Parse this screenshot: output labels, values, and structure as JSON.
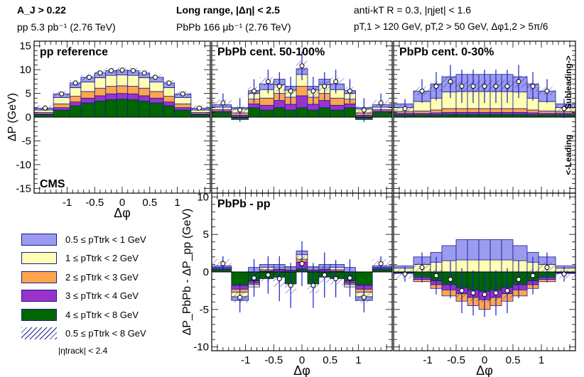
{
  "header": {
    "aj": "A_J > 0.22",
    "pp_lumi": "pp 5.3 pb⁻¹ (2.76 TeV)",
    "range": "Long range, |Δη| < 2.5",
    "pbpb_lumi": "PbPb 166 μb⁻¹ (2.76 TeV)",
    "jet_algo": "anti-kT R = 0.3, |ηjet| < 1.6",
    "pt_cuts": "pT,1 > 120 GeV, pT,2 > 50 GeV, Δφ1,2 > 5π/6"
  },
  "colors": {
    "b1": "#9b9bef",
    "b2": "#ffffb3",
    "b3": "#ffa64d",
    "b4": "#9933cc",
    "b5": "#006600",
    "edge": "#1a1a8c",
    "err": "#1a1acc"
  },
  "legend": {
    "items": [
      {
        "label": "0.5 ≤ pTtrk < 1 GeV",
        "color": "#9b9bef"
      },
      {
        "label": "1 ≤ pTtrk < 2 GeV",
        "color": "#ffffb3"
      },
      {
        "label": "2 ≤ pTtrk < 3 GeV",
        "color": "#ffa64d"
      },
      {
        "label": "3 ≤ pTtrk < 4 GeV",
        "color": "#9933cc"
      },
      {
        "label": "4 ≤ pTtrk < 8 GeV",
        "color": "#006600"
      },
      {
        "label": "0.5 ≤ pTtrk < 8 GeV",
        "color": "hatched"
      }
    ],
    "eta_cut": "|ηtrack| < 2.4"
  },
  "chart_data": [
    {
      "type": "bar",
      "title": "pp reference",
      "tag": "CMS",
      "xlabel": "Δφ",
      "ylabel": "ΔP  (GeV)",
      "ylim": [
        -16,
        16
      ],
      "xlim": [
        -1.6,
        1.6
      ],
      "yticks": [
        -15,
        -10,
        -5,
        0,
        5,
        10,
        15
      ],
      "xticks": [
        -1,
        -0.5,
        0,
        0.5,
        1
      ],
      "x": [
        -1.4,
        -1.1,
        -0.85,
        -0.6,
        -0.4,
        -0.2,
        0.0,
        0.2,
        0.4,
        0.6,
        0.85,
        1.1,
        1.4
      ],
      "series": [
        {
          "name": "4 ≤ pT < 8",
          "values": [
            0.5,
            1.5,
            2.4,
            3.0,
            3.4,
            3.7,
            3.8,
            3.7,
            3.4,
            3.0,
            2.4,
            1.5,
            0.5
          ]
        },
        {
          "name": "3 ≤ pT < 4",
          "values": [
            0.2,
            0.5,
            0.8,
            1.0,
            1.1,
            1.2,
            1.2,
            1.2,
            1.1,
            1.0,
            0.8,
            0.5,
            0.2
          ]
        },
        {
          "name": "2 ≤ pT < 3",
          "values": [
            0.3,
            0.8,
            1.2,
            1.4,
            1.6,
            1.6,
            1.6,
            1.6,
            1.6,
            1.4,
            1.2,
            0.8,
            0.3
          ]
        },
        {
          "name": "1 ≤ pT < 2",
          "values": [
            0.5,
            1.3,
            1.8,
            2.0,
            2.2,
            2.3,
            2.3,
            2.3,
            2.2,
            2.0,
            1.8,
            1.3,
            0.5
          ]
        },
        {
          "name": "0.5 ≤ pT < 1",
          "values": [
            0.4,
            0.8,
            1.0,
            1.0,
            1.0,
            1.0,
            1.0,
            1.0,
            1.0,
            1.0,
            1.0,
            0.8,
            0.4
          ]
        }
      ],
      "points": [
        1.9,
        4.9,
        7.2,
        8.4,
        9.3,
        9.8,
        9.9,
        9.8,
        9.3,
        8.4,
        7.2,
        4.9,
        1.9
      ],
      "errors": [
        0.3,
        0.3,
        0.3,
        0.3,
        0.3,
        0.3,
        0.3,
        0.3,
        0.3,
        0.3,
        0.3,
        0.3,
        0.3
      ]
    },
    {
      "type": "bar",
      "title": "PbPb cent. 50-100%",
      "ylim": [
        -16,
        16
      ],
      "xlim": [
        -1.6,
        1.6
      ],
      "x": [
        -1.4,
        -1.1,
        -0.85,
        -0.6,
        -0.4,
        -0.2,
        0.0,
        0.2,
        0.4,
        0.6,
        0.85,
        1.1,
        1.4
      ],
      "series": [
        {
          "name": "4 ≤ pT < 8",
          "values": [
            1.0,
            -0.5,
            2.0,
            1.5,
            2.0,
            1.5,
            2.0,
            1.5,
            2.0,
            1.5,
            2.0,
            -0.5,
            1.0
          ]
        },
        {
          "name": "3 ≤ pT < 4",
          "values": [
            0.3,
            0.4,
            0.8,
            1.0,
            1.5,
            1.2,
            2.5,
            1.2,
            1.5,
            1.0,
            0.8,
            0.4,
            0.3
          ]
        },
        {
          "name": "2 ≤ pT < 3",
          "values": [
            0.3,
            0.5,
            1.0,
            1.5,
            1.5,
            1.5,
            2.0,
            1.5,
            1.5,
            1.5,
            1.0,
            0.5,
            0.3
          ]
        },
        {
          "name": "1 ≤ pT < 2",
          "values": [
            0.5,
            0.8,
            1.2,
            1.8,
            1.8,
            1.5,
            2.5,
            1.5,
            1.8,
            1.8,
            1.2,
            0.8,
            0.5
          ]
        },
        {
          "name": "0.5 ≤ pT < 1",
          "values": [
            0.5,
            0.3,
            0.6,
            1.2,
            1.2,
            0.8,
            1.2,
            0.8,
            1.2,
            1.2,
            0.6,
            0.3,
            0.5
          ]
        }
      ],
      "points": [
        3.0,
        1.5,
        5.5,
        7.5,
        6.5,
        5.5,
        10.8,
        5.5,
        6.5,
        7.5,
        5.5,
        1.5,
        3.0
      ],
      "errors": [
        2.0,
        2.5,
        2.5,
        2.5,
        3.0,
        3.0,
        3.0,
        3.0,
        3.0,
        2.5,
        2.5,
        2.5,
        2.0
      ]
    },
    {
      "type": "bar",
      "title": "PbPb cent. 0-30%",
      "side_top": "Subleading->",
      "side_bottom": "<-Leading",
      "ylim": [
        -16,
        16
      ],
      "xlim": [
        -1.6,
        1.6
      ],
      "x": [
        -1.4,
        -1.1,
        -0.85,
        -0.6,
        -0.4,
        -0.2,
        0.0,
        0.2,
        0.4,
        0.6,
        0.85,
        1.1,
        1.4
      ],
      "series": [
        {
          "name": "4 ≤ pT < 8",
          "values": [
            0.5,
            0.5,
            0.5,
            0.6,
            0.6,
            0.6,
            0.6,
            0.6,
            0.6,
            0.6,
            0.5,
            0.5,
            0.5
          ]
        },
        {
          "name": "3 ≤ pT < 4",
          "values": [
            0.3,
            0.3,
            0.4,
            0.4,
            0.4,
            0.4,
            0.4,
            0.4,
            0.4,
            0.4,
            0.4,
            0.3,
            0.3
          ]
        },
        {
          "name": "2 ≤ pT < 3",
          "values": [
            0.4,
            0.5,
            0.6,
            0.8,
            0.8,
            0.8,
            0.8,
            0.8,
            0.8,
            0.8,
            0.6,
            0.5,
            0.4
          ]
        },
        {
          "name": "1 ≤ pT < 2",
          "values": [
            0.8,
            2.0,
            2.5,
            3.5,
            3.6,
            3.6,
            3.6,
            3.6,
            3.6,
            3.5,
            2.5,
            2.0,
            0.8
          ]
        },
        {
          "name": "0.5 ≤ pT < 1",
          "values": [
            0.8,
            2.2,
            3.0,
            3.2,
            3.6,
            3.6,
            3.6,
            3.6,
            3.6,
            3.2,
            3.0,
            2.2,
            0.8
          ]
        }
      ],
      "points": [
        1.8,
        5.5,
        6.5,
        7.5,
        6.5,
        6.5,
        6.5,
        6.5,
        6.5,
        7.5,
        6.5,
        5.5,
        1.8
      ],
      "errors": [
        2.0,
        2.5,
        3.0,
        3.5,
        3.5,
        3.5,
        3.5,
        3.5,
        3.5,
        3.5,
        3.0,
        2.5,
        2.0
      ]
    },
    {
      "type": "bar",
      "title": "PbPb - pp",
      "xlabel": "Δφ",
      "ylabel": "ΔP_PbPb - ΔP_pp  (GeV)",
      "ylim": [
        -10.5,
        10.5
      ],
      "xlim": [
        -1.6,
        1.6
      ],
      "yticks": [
        -10,
        -5,
        0,
        5,
        10
      ],
      "xticks": [
        -1,
        -0.5,
        0,
        0.5,
        1
      ],
      "x": [
        -1.4,
        -1.1,
        -0.85,
        -0.6,
        -0.4,
        -0.2,
        0.0,
        0.2,
        0.4,
        0.6,
        0.85,
        1.1,
        1.4
      ],
      "series": [
        {
          "name": "4 ≤ pT < 8",
          "values": [
            0.3,
            -1.8,
            -1.2,
            -0.9,
            -0.7,
            -1.6,
            0.4,
            -1.6,
            -0.7,
            -0.9,
            -1.2,
            -1.8,
            0.3
          ]
        },
        {
          "name": "3 ≤ pT < 4",
          "values": [
            0.1,
            -0.5,
            -0.3,
            0.1,
            0.3,
            0.2,
            0.9,
            0.2,
            0.3,
            0.1,
            -0.3,
            -0.5,
            0.1
          ]
        },
        {
          "name": "2 ≤ pT < 3",
          "values": [
            0.1,
            -0.4,
            -0.2,
            0.2,
            0.1,
            0.1,
            0.4,
            0.1,
            0.1,
            0.2,
            -0.2,
            -0.4,
            0.1
          ]
        },
        {
          "name": "1 ≤ pT < 2",
          "values": [
            0.1,
            -0.6,
            -0.3,
            0.3,
            0.2,
            0.2,
            0.6,
            0.2,
            0.2,
            0.3,
            -0.3,
            -0.6,
            0.1
          ]
        },
        {
          "name": "0.5 ≤ pT < 1",
          "values": [
            0.2,
            -0.5,
            0.6,
            0.4,
            0.4,
            0.2,
            0.5,
            0.2,
            0.4,
            0.4,
            0.6,
            -0.5,
            0.2
          ]
        }
      ],
      "points": [
        1.1,
        -3.4,
        -0.8,
        -0.4,
        -0.9,
        -1.8,
        1.1,
        -1.8,
        -0.4,
        -0.9,
        -0.8,
        -3.4,
        1.1
      ],
      "errors": [
        1.0,
        2.0,
        2.5,
        2.5,
        3.0,
        3.0,
        3.0,
        3.0,
        3.0,
        2.5,
        2.5,
        2.0,
        1.0
      ]
    },
    {
      "type": "bar",
      "title": "",
      "xlabel": "Δφ",
      "ylim": [
        -10.5,
        10.5
      ],
      "xlim": [
        -1.6,
        1.6
      ],
      "xticks": [
        -1,
        -0.5,
        0,
        0.5,
        1
      ],
      "x": [
        -1.4,
        -1.1,
        -0.85,
        -0.6,
        -0.4,
        -0.2,
        0.0,
        0.2,
        0.4,
        0.6,
        0.85,
        1.1,
        1.4
      ],
      "series": [
        {
          "name": "4 ≤ pT < 8",
          "values": [
            -0.1,
            -0.7,
            -1.2,
            -1.7,
            -2.1,
            -2.4,
            -2.6,
            -2.4,
            -2.1,
            -1.7,
            -1.2,
            -0.7,
            -0.1
          ]
        },
        {
          "name": "3 ≤ pT < 4",
          "values": [
            -0.05,
            -0.3,
            -0.5,
            -0.7,
            -0.8,
            -1.0,
            -1.1,
            -1.0,
            -0.8,
            -0.7,
            -0.5,
            -0.3,
            -0.05
          ]
        },
        {
          "name": "2 ≤ pT < 3",
          "values": [
            -0.05,
            -0.3,
            -0.5,
            -0.8,
            -1.0,
            -1.1,
            -1.3,
            -1.1,
            -1.0,
            -0.8,
            -0.5,
            -0.3,
            -0.05
          ]
        },
        {
          "name": "1 ≤ pT < 2",
          "values": [
            0.5,
            1.0,
            1.3,
            1.5,
            1.6,
            1.6,
            1.6,
            1.6,
            1.6,
            1.5,
            1.3,
            1.0,
            0.5
          ]
        },
        {
          "name": "0.5 ≤ pT < 1",
          "values": [
            0.3,
            1.0,
            1.3,
            2.0,
            2.7,
            2.7,
            2.7,
            2.7,
            2.7,
            2.0,
            1.3,
            1.0,
            0.3
          ]
        }
      ],
      "points": [
        -0.3,
        0.6,
        -0.5,
        -1.0,
        -2.5,
        -2.8,
        -3.0,
        -2.8,
        -2.5,
        -1.0,
        -0.5,
        0.6,
        -0.3
      ],
      "errors": [
        1.0,
        2.0,
        2.5,
        2.5,
        3.0,
        3.0,
        3.0,
        3.0,
        3.0,
        2.5,
        2.5,
        2.0,
        1.0
      ]
    }
  ]
}
